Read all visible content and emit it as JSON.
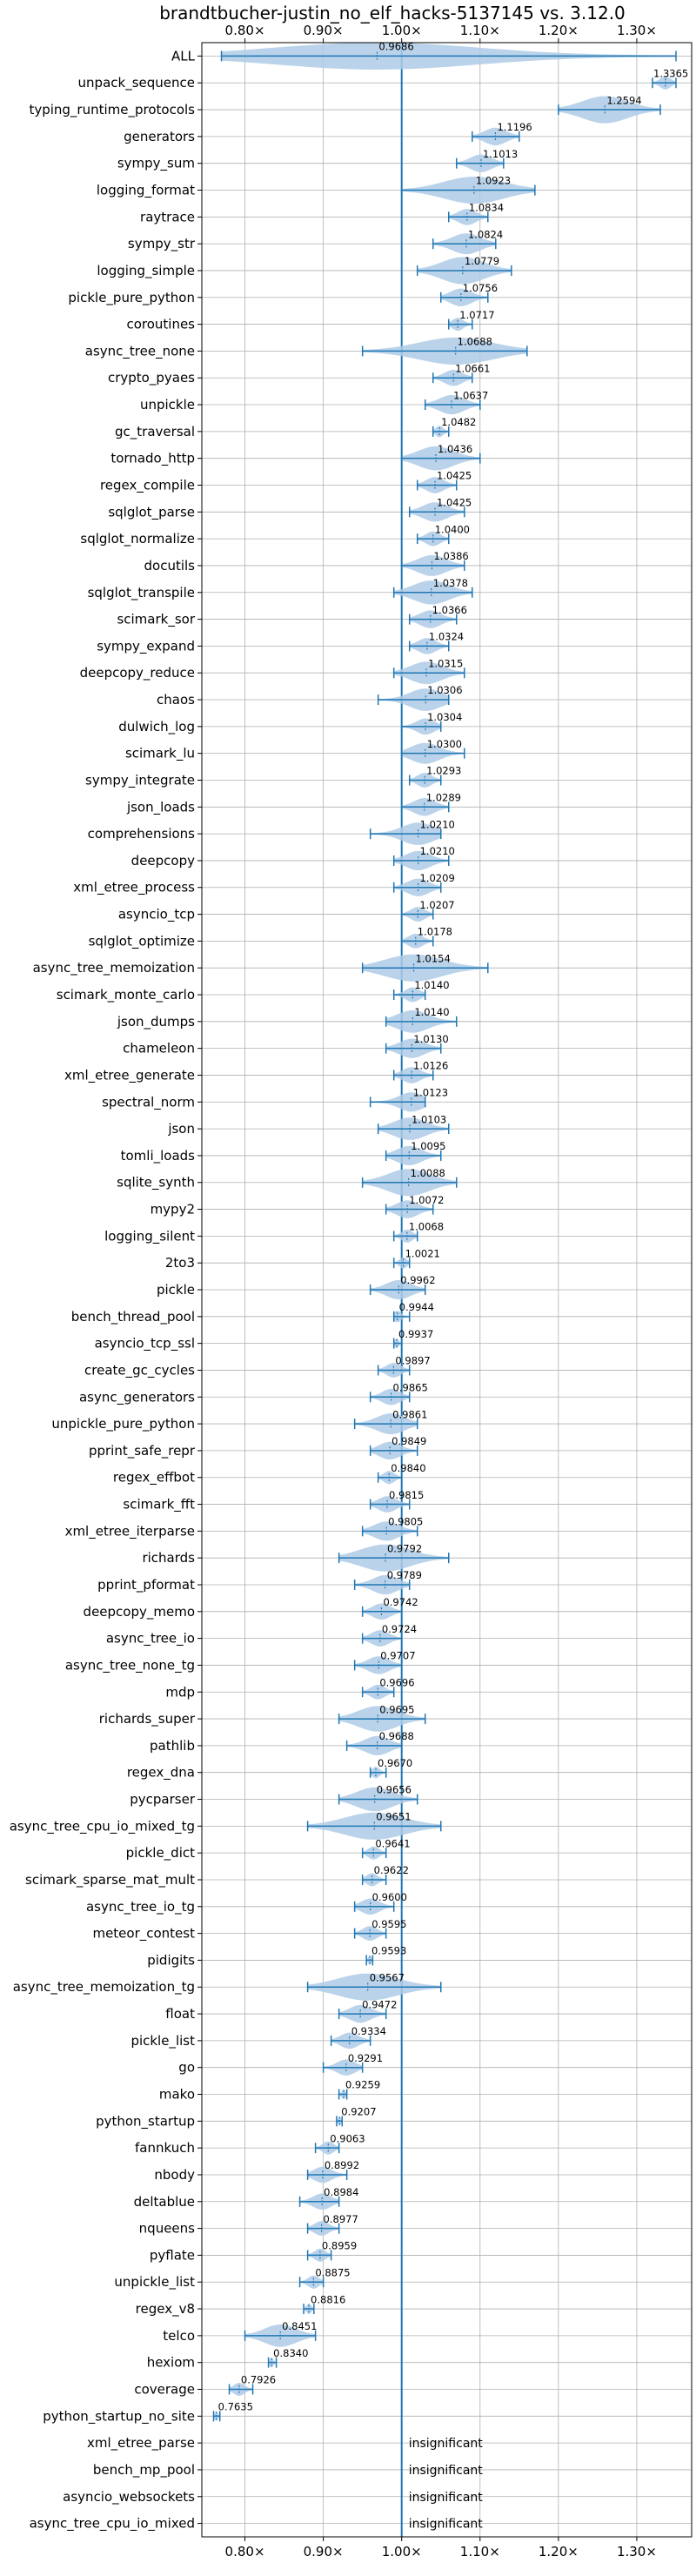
{
  "chart_data": {
    "type": "violin",
    "title": "brandtbucher-justin_no_elf_hacks-5137145 vs. 3.12.0",
    "xlabel": "",
    "ylabel": "",
    "xlim": [
      0.745,
      1.37
    ],
    "reference_line": 1.0,
    "x_tick_values": [
      0.8,
      0.9,
      1.0,
      1.1,
      1.2,
      1.3
    ],
    "x_tick_labels": [
      "0.80×",
      "0.90×",
      "1.00×",
      "1.10×",
      "1.20×",
      "1.30×"
    ],
    "grid": true,
    "colors": {
      "violin": "#aecbe6",
      "line": "#1f77b4",
      "grid": "#b0b0b0"
    },
    "insignificant_label": "insignificant",
    "benchmarks": [
      {
        "name": "ALL",
        "value": 0.9686,
        "label": "0.9686",
        "min": 0.77,
        "max": 1.35
      },
      {
        "name": "unpack_sequence",
        "value": 1.3365,
        "label": "1.3365",
        "min": 1.32,
        "max": 1.35
      },
      {
        "name": "typing_runtime_protocols",
        "value": 1.2594,
        "label": "1.2594",
        "min": 1.2,
        "max": 1.33
      },
      {
        "name": "generators",
        "value": 1.1196,
        "label": "1.1196",
        "min": 1.09,
        "max": 1.15
      },
      {
        "name": "sympy_sum",
        "value": 1.1013,
        "label": "1.1013",
        "min": 1.07,
        "max": 1.13
      },
      {
        "name": "logging_format",
        "value": 1.0923,
        "label": "1.0923",
        "min": 1.0,
        "max": 1.17
      },
      {
        "name": "raytrace",
        "value": 1.0834,
        "label": "1.0834",
        "min": 1.06,
        "max": 1.11
      },
      {
        "name": "sympy_str",
        "value": 1.0824,
        "label": "1.0824",
        "min": 1.04,
        "max": 1.12
      },
      {
        "name": "logging_simple",
        "value": 1.0779,
        "label": "1.0779",
        "min": 1.02,
        "max": 1.14
      },
      {
        "name": "pickle_pure_python",
        "value": 1.0756,
        "label": "1.0756",
        "min": 1.05,
        "max": 1.11
      },
      {
        "name": "coroutines",
        "value": 1.0717,
        "label": "1.0717",
        "min": 1.06,
        "max": 1.09
      },
      {
        "name": "async_tree_none",
        "value": 1.0688,
        "label": "1.0688",
        "min": 0.95,
        "max": 1.16
      },
      {
        "name": "crypto_pyaes",
        "value": 1.0661,
        "label": "1.0661",
        "min": 1.04,
        "max": 1.09
      },
      {
        "name": "unpickle",
        "value": 1.0637,
        "label": "1.0637",
        "min": 1.03,
        "max": 1.1
      },
      {
        "name": "gc_traversal",
        "value": 1.0482,
        "label": "1.0482",
        "min": 1.04,
        "max": 1.06
      },
      {
        "name": "tornado_http",
        "value": 1.0436,
        "label": "1.0436",
        "min": 1.0,
        "max": 1.1
      },
      {
        "name": "regex_compile",
        "value": 1.0425,
        "label": "1.0425",
        "min": 1.02,
        "max": 1.07
      },
      {
        "name": "sqlglot_parse",
        "value": 1.0425,
        "label": "1.0425",
        "min": 1.01,
        "max": 1.08
      },
      {
        "name": "sqlglot_normalize",
        "value": 1.04,
        "label": "1.0400",
        "min": 1.02,
        "max": 1.06
      },
      {
        "name": "docutils",
        "value": 1.0386,
        "label": "1.0386",
        "min": 1.0,
        "max": 1.08
      },
      {
        "name": "sqlglot_transpile",
        "value": 1.0378,
        "label": "1.0378",
        "min": 0.99,
        "max": 1.09
      },
      {
        "name": "scimark_sor",
        "value": 1.0366,
        "label": "1.0366",
        "min": 1.01,
        "max": 1.07
      },
      {
        "name": "sympy_expand",
        "value": 1.0324,
        "label": "1.0324",
        "min": 1.01,
        "max": 1.06
      },
      {
        "name": "deepcopy_reduce",
        "value": 1.0315,
        "label": "1.0315",
        "min": 0.99,
        "max": 1.08
      },
      {
        "name": "chaos",
        "value": 1.0306,
        "label": "1.0306",
        "min": 0.97,
        "max": 1.06
      },
      {
        "name": "dulwich_log",
        "value": 1.0304,
        "label": "1.0304",
        "min": 1.0,
        "max": 1.05
      },
      {
        "name": "scimark_lu",
        "value": 1.03,
        "label": "1.0300",
        "min": 1.0,
        "max": 1.08
      },
      {
        "name": "sympy_integrate",
        "value": 1.0293,
        "label": "1.0293",
        "min": 1.01,
        "max": 1.05
      },
      {
        "name": "json_loads",
        "value": 1.0289,
        "label": "1.0289",
        "min": 1.0,
        "max": 1.06
      },
      {
        "name": "comprehensions",
        "value": 1.021,
        "label": "1.0210",
        "min": 0.96,
        "max": 1.05
      },
      {
        "name": "deepcopy",
        "value": 1.021,
        "label": "1.0210",
        "min": 0.99,
        "max": 1.06
      },
      {
        "name": "xml_etree_process",
        "value": 1.0209,
        "label": "1.0209",
        "min": 0.99,
        "max": 1.05
      },
      {
        "name": "asyncio_tcp",
        "value": 1.0207,
        "label": "1.0207",
        "min": 1.0,
        "max": 1.04
      },
      {
        "name": "sqlglot_optimize",
        "value": 1.0178,
        "label": "1.0178",
        "min": 1.0,
        "max": 1.04
      },
      {
        "name": "async_tree_memoization",
        "value": 1.0154,
        "label": "1.0154",
        "min": 0.95,
        "max": 1.11
      },
      {
        "name": "scimark_monte_carlo",
        "value": 1.014,
        "label": "1.0140",
        "min": 0.99,
        "max": 1.03
      },
      {
        "name": "json_dumps",
        "value": 1.014,
        "label": "1.0140",
        "min": 0.98,
        "max": 1.07
      },
      {
        "name": "chameleon",
        "value": 1.013,
        "label": "1.0130",
        "min": 0.98,
        "max": 1.05
      },
      {
        "name": "xml_etree_generate",
        "value": 1.0126,
        "label": "1.0126",
        "min": 0.99,
        "max": 1.04
      },
      {
        "name": "spectral_norm",
        "value": 1.0123,
        "label": "1.0123",
        "min": 0.96,
        "max": 1.03
      },
      {
        "name": "json",
        "value": 1.0103,
        "label": "1.0103",
        "min": 0.97,
        "max": 1.06
      },
      {
        "name": "tomli_loads",
        "value": 1.0095,
        "label": "1.0095",
        "min": 0.98,
        "max": 1.05
      },
      {
        "name": "sqlite_synth",
        "value": 1.0088,
        "label": "1.0088",
        "min": 0.95,
        "max": 1.07
      },
      {
        "name": "mypy2",
        "value": 1.0072,
        "label": "1.0072",
        "min": 0.98,
        "max": 1.04
      },
      {
        "name": "logging_silent",
        "value": 1.0068,
        "label": "1.0068",
        "min": 0.99,
        "max": 1.02
      },
      {
        "name": "2to3",
        "value": 1.0021,
        "label": "1.0021",
        "min": 0.99,
        "max": 1.01
      },
      {
        "name": "pickle",
        "value": 0.9962,
        "label": "0.9962",
        "min": 0.96,
        "max": 1.03
      },
      {
        "name": "bench_thread_pool",
        "value": 0.9944,
        "label": "0.9944",
        "min": 0.99,
        "max": 1.01
      },
      {
        "name": "asyncio_tcp_ssl",
        "value": 0.9937,
        "label": "0.9937",
        "min": 0.99,
        "max": 1.0
      },
      {
        "name": "create_gc_cycles",
        "value": 0.9897,
        "label": "0.9897",
        "min": 0.97,
        "max": 1.01
      },
      {
        "name": "async_generators",
        "value": 0.9865,
        "label": "0.9865",
        "min": 0.96,
        "max": 1.01
      },
      {
        "name": "unpickle_pure_python",
        "value": 0.9861,
        "label": "0.9861",
        "min": 0.94,
        "max": 1.02
      },
      {
        "name": "pprint_safe_repr",
        "value": 0.9849,
        "label": "0.9849",
        "min": 0.96,
        "max": 1.02
      },
      {
        "name": "regex_effbot",
        "value": 0.984,
        "label": "0.9840",
        "min": 0.97,
        "max": 1.0
      },
      {
        "name": "scimark_fft",
        "value": 0.9815,
        "label": "0.9815",
        "min": 0.96,
        "max": 1.01
      },
      {
        "name": "xml_etree_iterparse",
        "value": 0.9805,
        "label": "0.9805",
        "min": 0.95,
        "max": 1.02
      },
      {
        "name": "richards",
        "value": 0.9792,
        "label": "0.9792",
        "min": 0.92,
        "max": 1.06
      },
      {
        "name": "pprint_pformat",
        "value": 0.9789,
        "label": "0.9789",
        "min": 0.94,
        "max": 1.01
      },
      {
        "name": "deepcopy_memo",
        "value": 0.9742,
        "label": "0.9742",
        "min": 0.95,
        "max": 1.0
      },
      {
        "name": "async_tree_io",
        "value": 0.9724,
        "label": "0.9724",
        "min": 0.95,
        "max": 1.0
      },
      {
        "name": "async_tree_none_tg",
        "value": 0.9707,
        "label": "0.9707",
        "min": 0.94,
        "max": 1.0
      },
      {
        "name": "mdp",
        "value": 0.9696,
        "label": "0.9696",
        "min": 0.95,
        "max": 0.99
      },
      {
        "name": "richards_super",
        "value": 0.9695,
        "label": "0.9695",
        "min": 0.92,
        "max": 1.03
      },
      {
        "name": "pathlib",
        "value": 0.9688,
        "label": "0.9688",
        "min": 0.93,
        "max": 1.0
      },
      {
        "name": "regex_dna",
        "value": 0.967,
        "label": "0.9670",
        "min": 0.96,
        "max": 0.98
      },
      {
        "name": "pycparser",
        "value": 0.9656,
        "label": "0.9656",
        "min": 0.92,
        "max": 1.02
      },
      {
        "name": "async_tree_cpu_io_mixed_tg",
        "value": 0.9651,
        "label": "0.9651",
        "min": 0.88,
        "max": 1.05
      },
      {
        "name": "pickle_dict",
        "value": 0.9641,
        "label": "0.9641",
        "min": 0.95,
        "max": 0.98
      },
      {
        "name": "scimark_sparse_mat_mult",
        "value": 0.9622,
        "label": "0.9622",
        "min": 0.95,
        "max": 0.98
      },
      {
        "name": "async_tree_io_tg",
        "value": 0.96,
        "label": "0.9600",
        "min": 0.94,
        "max": 0.99
      },
      {
        "name": "meteor_contest",
        "value": 0.9595,
        "label": "0.9595",
        "min": 0.94,
        "max": 0.98
      },
      {
        "name": "pidigits",
        "value": 0.9593,
        "label": "0.9593",
        "min": 0.955,
        "max": 0.963
      },
      {
        "name": "async_tree_memoization_tg",
        "value": 0.9567,
        "label": "0.9567",
        "min": 0.88,
        "max": 1.05
      },
      {
        "name": "float",
        "value": 0.9472,
        "label": "0.9472",
        "min": 0.92,
        "max": 0.98
      },
      {
        "name": "pickle_list",
        "value": 0.9334,
        "label": "0.9334",
        "min": 0.91,
        "max": 0.96
      },
      {
        "name": "go",
        "value": 0.9291,
        "label": "0.9291",
        "min": 0.9,
        "max": 0.95
      },
      {
        "name": "mako",
        "value": 0.9259,
        "label": "0.9259",
        "min": 0.92,
        "max": 0.93
      },
      {
        "name": "python_startup",
        "value": 0.9207,
        "label": "0.9207",
        "min": 0.917,
        "max": 0.924
      },
      {
        "name": "fannkuch",
        "value": 0.9063,
        "label": "0.9063",
        "min": 0.89,
        "max": 0.92
      },
      {
        "name": "nbody",
        "value": 0.8992,
        "label": "0.8992",
        "min": 0.88,
        "max": 0.93
      },
      {
        "name": "deltablue",
        "value": 0.8984,
        "label": "0.8984",
        "min": 0.87,
        "max": 0.92
      },
      {
        "name": "nqueens",
        "value": 0.8977,
        "label": "0.8977",
        "min": 0.88,
        "max": 0.92
      },
      {
        "name": "pyflate",
        "value": 0.8959,
        "label": "0.8959",
        "min": 0.88,
        "max": 0.91
      },
      {
        "name": "unpickle_list",
        "value": 0.8875,
        "label": "0.8875",
        "min": 0.87,
        "max": 0.9
      },
      {
        "name": "regex_v8",
        "value": 0.8816,
        "label": "0.8816",
        "min": 0.875,
        "max": 0.888
      },
      {
        "name": "telco",
        "value": 0.8451,
        "label": "0.8451",
        "min": 0.8,
        "max": 0.89
      },
      {
        "name": "hexiom",
        "value": 0.834,
        "label": "0.8340",
        "min": 0.83,
        "max": 0.84
      },
      {
        "name": "coverage",
        "value": 0.7926,
        "label": "0.7926",
        "min": 0.78,
        "max": 0.81
      },
      {
        "name": "python_startup_no_site",
        "value": 0.7635,
        "label": "0.7635",
        "min": 0.76,
        "max": 0.768
      },
      {
        "name": "xml_etree_parse",
        "value": null,
        "label": ""
      },
      {
        "name": "bench_mp_pool",
        "value": null,
        "label": ""
      },
      {
        "name": "asyncio_websockets",
        "value": null,
        "label": ""
      },
      {
        "name": "async_tree_cpu_io_mixed",
        "value": null,
        "label": ""
      }
    ]
  }
}
